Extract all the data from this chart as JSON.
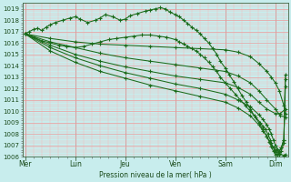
{
  "ylabel": "Pression niveau de la mer( hPa )",
  "xlabel_days": [
    "Mer",
    "Lun",
    "Jeu",
    "Ven",
    "Sam",
    "Dim"
  ],
  "day_x": [
    0,
    1,
    2,
    3,
    4,
    5
  ],
  "ylim": [
    1006,
    1019.5
  ],
  "xlim": [
    -0.05,
    5.25
  ],
  "yticks": [
    1006,
    1007,
    1008,
    1009,
    1010,
    1011,
    1012,
    1013,
    1014,
    1015,
    1016,
    1017,
    1018,
    1019
  ],
  "bg_color": "#c8eded",
  "grid_major_color": "#ee9999",
  "grid_minor_color": "#f5bbbb",
  "line_color": "#1a6b1a",
  "marker": "+",
  "marker_size": 3,
  "line_width": 0.75,
  "series": [
    {
      "x": [
        0.0,
        0.08,
        0.17,
        0.25,
        0.33,
        0.42,
        0.5,
        0.6,
        0.75,
        0.9,
        1.0,
        1.1,
        1.25,
        1.4,
        1.5,
        1.6,
        1.75,
        1.9,
        2.0,
        2.1,
        2.25,
        2.4,
        2.5,
        2.6,
        2.7,
        2.8,
        2.9,
        3.0,
        3.08,
        3.17,
        3.25,
        3.33,
        3.42,
        3.5,
        3.58,
        3.67,
        3.75,
        3.83,
        3.9,
        4.0,
        4.08,
        4.17,
        4.25,
        4.33,
        4.42,
        4.5,
        4.58,
        4.67,
        4.75,
        4.83,
        4.9,
        5.0,
        5.08,
        5.17,
        5.2
      ],
      "y": [
        1016.8,
        1017.0,
        1017.2,
        1017.3,
        1017.1,
        1017.4,
        1017.6,
        1017.8,
        1018.0,
        1018.2,
        1018.3,
        1018.1,
        1017.8,
        1018.0,
        1018.2,
        1018.5,
        1018.3,
        1018.0,
        1018.1,
        1018.4,
        1018.6,
        1018.8,
        1018.9,
        1019.0,
        1019.1,
        1019.0,
        1018.7,
        1018.5,
        1018.3,
        1018.0,
        1017.7,
        1017.4,
        1017.1,
        1016.8,
        1016.4,
        1016.0,
        1015.5,
        1015.0,
        1014.4,
        1013.8,
        1013.2,
        1012.6,
        1012.0,
        1011.4,
        1010.8,
        1010.2,
        1009.6,
        1009.0,
        1008.4,
        1007.8,
        1007.2,
        1006.6,
        1006.3,
        1006.1,
        1006.2
      ]
    },
    {
      "x": [
        0.0,
        0.5,
        1.0,
        1.5,
        2.0,
        2.5,
        3.0,
        3.5,
        4.0,
        4.25,
        4.5,
        4.67,
        4.83,
        4.92,
        5.0,
        5.08,
        5.17,
        5.2
      ],
      "y": [
        1016.8,
        1016.4,
        1016.1,
        1015.9,
        1015.8,
        1015.7,
        1015.6,
        1015.5,
        1015.4,
        1015.2,
        1014.8,
        1014.2,
        1013.5,
        1013.0,
        1012.5,
        1011.8,
        1010.5,
        1009.8
      ]
    },
    {
      "x": [
        0.0,
        0.5,
        1.0,
        1.5,
        2.0,
        2.5,
        3.0,
        3.5,
        4.0,
        4.25,
        4.5,
        4.67,
        4.83,
        5.0,
        5.1,
        5.2
      ],
      "y": [
        1016.8,
        1016.1,
        1015.6,
        1015.1,
        1014.7,
        1014.4,
        1014.1,
        1013.8,
        1013.5,
        1013.1,
        1012.5,
        1011.8,
        1011.0,
        1010.2,
        1009.6,
        1009.5
      ]
    },
    {
      "x": [
        0.0,
        0.5,
        1.0,
        1.5,
        2.0,
        2.5,
        3.0,
        3.5,
        4.0,
        4.25,
        4.5,
        4.67,
        4.83,
        5.0,
        5.1,
        5.2
      ],
      "y": [
        1016.8,
        1015.8,
        1015.0,
        1014.4,
        1013.9,
        1013.5,
        1013.1,
        1012.8,
        1012.5,
        1012.1,
        1011.5,
        1010.8,
        1010.2,
        1009.8,
        1009.8,
        1010.2
      ]
    },
    {
      "x": [
        0.0,
        0.5,
        1.0,
        1.5,
        2.0,
        2.5,
        3.0,
        3.5,
        4.0,
        4.25,
        4.5,
        4.67,
        4.75,
        4.83,
        4.88,
        4.92,
        4.96,
        5.0,
        5.04,
        5.08,
        5.12,
        5.17,
        5.2
      ],
      "y": [
        1016.8,
        1015.6,
        1014.7,
        1014.0,
        1013.4,
        1012.9,
        1012.4,
        1012.0,
        1011.5,
        1011.0,
        1010.4,
        1009.7,
        1009.3,
        1008.8,
        1008.4,
        1008.0,
        1007.5,
        1007.0,
        1006.7,
        1006.5,
        1006.8,
        1007.5,
        1012.8
      ]
    },
    {
      "x": [
        0.0,
        0.5,
        1.0,
        1.5,
        2.0,
        2.5,
        3.0,
        3.5,
        4.0,
        4.25,
        4.5,
        4.67,
        4.75,
        4.83,
        4.88,
        4.92,
        4.96,
        5.0,
        5.04,
        5.08,
        5.12,
        5.17,
        5.2
      ],
      "y": [
        1016.8,
        1015.3,
        1014.3,
        1013.5,
        1012.9,
        1012.3,
        1011.8,
        1011.3,
        1010.8,
        1010.3,
        1009.6,
        1008.8,
        1008.3,
        1007.8,
        1007.3,
        1006.9,
        1006.5,
        1006.2,
        1006.2,
        1006.4,
        1006.8,
        1007.5,
        1012.2
      ]
    },
    {
      "x": [
        0.0,
        0.17,
        0.33,
        0.5,
        0.67,
        0.83,
        1.0,
        1.17,
        1.33,
        1.5,
        1.67,
        1.83,
        2.0,
        2.17,
        2.33,
        2.5,
        2.67,
        2.83,
        3.0,
        3.08,
        3.17,
        3.25,
        3.33,
        3.42,
        3.5,
        3.58,
        3.67,
        3.75,
        3.83,
        3.9,
        4.0,
        4.1,
        4.2,
        4.3,
        4.4,
        4.5,
        4.6,
        4.7,
        4.75,
        4.8,
        4.85,
        4.9,
        4.92,
        4.96,
        5.0,
        5.04,
        5.08,
        5.12,
        5.17,
        5.2
      ],
      "y": [
        1016.8,
        1016.5,
        1016.2,
        1016.0,
        1015.8,
        1015.7,
        1015.6,
        1015.7,
        1015.9,
        1016.1,
        1016.3,
        1016.4,
        1016.5,
        1016.6,
        1016.7,
        1016.7,
        1016.6,
        1016.5,
        1016.3,
        1016.1,
        1015.9,
        1015.7,
        1015.5,
        1015.3,
        1015.0,
        1014.7,
        1014.3,
        1013.9,
        1013.5,
        1013.0,
        1012.5,
        1012.0,
        1011.5,
        1011.0,
        1010.5,
        1010.0,
        1009.5,
        1009.0,
        1008.7,
        1008.4,
        1008.0,
        1007.5,
        1007.2,
        1006.8,
        1006.4,
        1006.2,
        1006.2,
        1006.5,
        1007.2,
        1013.2
      ]
    }
  ]
}
